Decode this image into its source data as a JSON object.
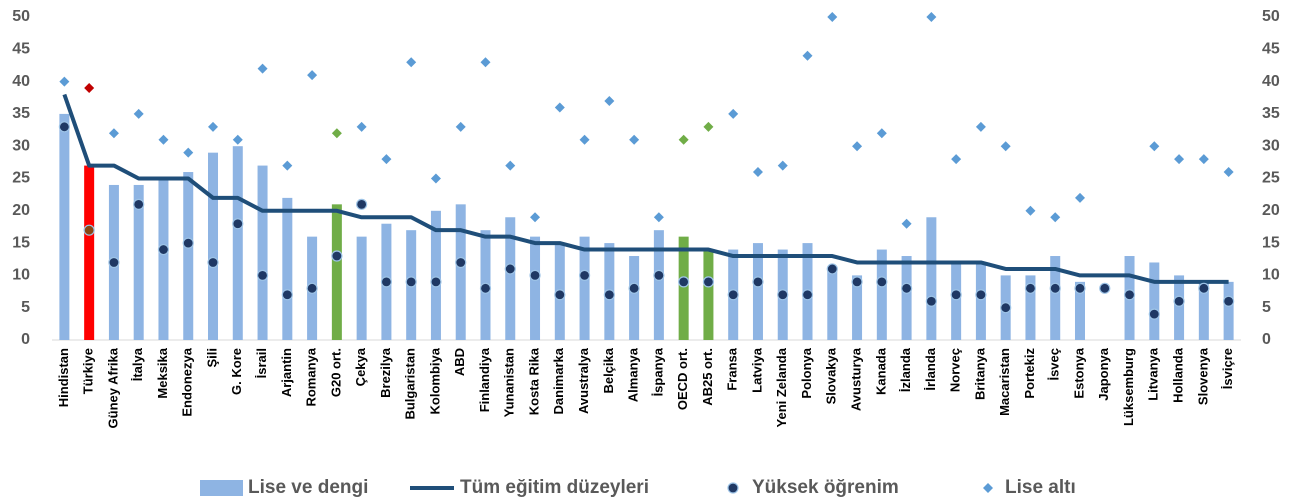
{
  "chart_data": {
    "type": "combo",
    "categories": [
      "Hindistan",
      "Türkiye",
      "Güney Afrika",
      "İtalya",
      "Meksika",
      "Endonezya",
      "Şili",
      "G. Kore",
      "İsrail",
      "Arjantin",
      "Romanya",
      "G20 ort.",
      "Çekya",
      "Brezilya",
      "Bulgaristan",
      "Kolombiya",
      "ABD",
      "Finlandiya",
      "Yunanistan",
      "Kosta Rika",
      "Danimarka",
      "Avustralya",
      "Belçika",
      "Almanya",
      "İspanya",
      "OECD ort.",
      "AB25 ort.",
      "Fransa",
      "Latviya",
      "Yeni Zelanda",
      "Polonya",
      "Slovakya",
      "Avusturya",
      "Kanada",
      "İzlanda",
      "İrlanda",
      "Norveç",
      "Britanya",
      "Macaristan",
      "Portekiz",
      "İsveç",
      "Estonya",
      "Japonya",
      "Lüksemburg",
      "Litvanya",
      "Hollanda",
      "Slovenya",
      "İsviçre"
    ],
    "series": [
      {
        "name": "Lise ve dengi",
        "kind": "bar",
        "color": "#8eb4e3",
        "highlight_colors": {
          "1": "#ff0000",
          "11": "#70ad47",
          "25": "#70ad47",
          "26": "#70ad47"
        },
        "values": [
          35,
          27,
          24,
          24,
          25,
          26,
          29,
          30,
          27,
          22,
          16,
          21,
          16,
          18,
          17,
          20,
          21,
          17,
          19,
          16,
          15,
          16,
          15,
          13,
          17,
          16,
          14,
          14,
          15,
          14,
          15,
          11,
          10,
          14,
          13,
          19,
          12,
          12,
          10,
          10,
          13,
          9,
          null,
          13,
          12,
          10,
          9,
          9
        ]
      },
      {
        "name": "Tüm eğitim düzeyleri",
        "kind": "line",
        "color": "#1f4e79",
        "values": [
          38,
          27,
          27,
          25,
          25,
          25,
          22,
          22,
          20,
          20,
          20,
          20,
          19,
          19,
          19,
          17,
          17,
          16,
          16,
          15,
          15,
          14,
          14,
          14,
          14,
          14,
          14,
          13,
          13,
          13,
          13,
          13,
          12,
          12,
          12,
          12,
          12,
          12,
          11,
          11,
          11,
          10,
          10,
          10,
          9,
          9,
          9,
          9
        ]
      },
      {
        "name": "Yüksek öğrenim",
        "kind": "dot",
        "color": "#1f3864",
        "highlight_colors": {
          "1": "#8b4513"
        },
        "values": [
          33,
          17,
          12,
          21,
          14,
          15,
          12,
          18,
          10,
          7,
          8,
          13,
          21,
          9,
          9,
          9,
          12,
          8,
          11,
          10,
          7,
          10,
          7,
          8,
          10,
          9,
          9,
          7,
          9,
          7,
          7,
          11,
          9,
          9,
          8,
          6,
          7,
          7,
          5,
          8,
          8,
          8,
          8,
          7,
          4,
          6,
          8,
          6
        ]
      },
      {
        "name": "Lise altı",
        "kind": "diamond",
        "color": "#5b9bd5",
        "highlight_colors": {
          "1": "#c00000",
          "11": "#70ad47",
          "25": "#70ad47",
          "26": "#70ad47"
        },
        "values": [
          40,
          39,
          32,
          35,
          31,
          29,
          33,
          31,
          42,
          27,
          41,
          32,
          33,
          28,
          43,
          25,
          33,
          43,
          27,
          19,
          36,
          31,
          37,
          31,
          19,
          31,
          33,
          35,
          26,
          27,
          44,
          50,
          30,
          32,
          18,
          50,
          28,
          33,
          30,
          20,
          19,
          22,
          null,
          null,
          30,
          28,
          28,
          26
        ]
      }
    ],
    "ylim": [
      0,
      50
    ],
    "yticks": [
      0,
      5,
      10,
      15,
      20,
      25,
      30,
      35,
      40,
      45,
      50
    ],
    "y2lim": [
      0,
      50
    ],
    "y2ticks": [
      0,
      5,
      10,
      15,
      20,
      25,
      30,
      35,
      40,
      45,
      50
    ]
  }
}
